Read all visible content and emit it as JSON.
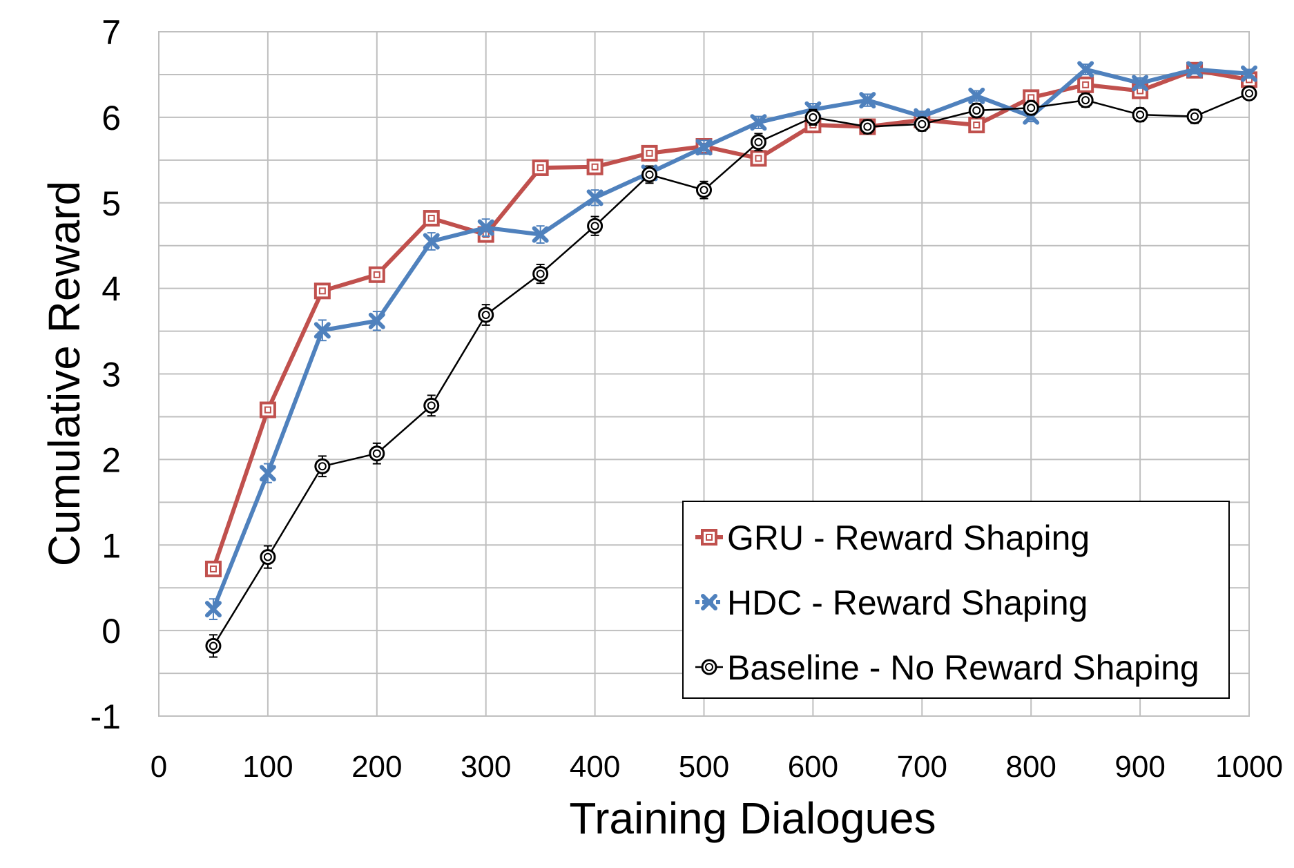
{
  "chart_data": {
    "type": "line",
    "xlabel": "Training Dialogues",
    "ylabel": "Cumulative Reward",
    "xlim": [
      0,
      1000
    ],
    "ylim": [
      -1,
      7
    ],
    "x_ticks": [
      "0",
      "100",
      "200",
      "300",
      "400",
      "500",
      "600",
      "700",
      "800",
      "900",
      "1000"
    ],
    "y_ticks": [
      "-1",
      "0",
      "1",
      "2",
      "3",
      "4",
      "5",
      "6",
      "7"
    ],
    "grid": true,
    "legend_position": "bottom-right",
    "x": [
      50,
      100,
      150,
      200,
      250,
      300,
      350,
      400,
      450,
      500,
      550,
      600,
      650,
      700,
      750,
      800,
      850,
      900,
      950,
      1000
    ],
    "series": [
      {
        "name": "GRU - Reward Shaping",
        "color": "#C0504D",
        "marker": "square",
        "values": [
          0.72,
          2.58,
          3.97,
          4.16,
          4.82,
          4.63,
          5.41,
          5.42,
          5.58,
          5.66,
          5.52,
          5.91,
          5.89,
          5.97,
          5.91,
          6.23,
          6.38,
          6.31,
          6.55,
          6.44
        ],
        "errors": [
          0.07,
          0.07,
          0.07,
          0.07,
          0.07,
          0.07,
          0.06,
          0.06,
          0.06,
          0.06,
          0.06,
          0.05,
          0.05,
          0.05,
          0.05,
          0.05,
          0.05,
          0.05,
          0.05,
          0.05
        ]
      },
      {
        "name": "HDC - Reward Shaping",
        "color": "#4F81BD",
        "marker": "x",
        "values": [
          0.25,
          1.84,
          3.51,
          3.62,
          4.55,
          4.71,
          4.63,
          5.06,
          5.35,
          5.65,
          5.94,
          6.09,
          6.2,
          6.01,
          6.25,
          6.01,
          6.56,
          6.4,
          6.56,
          6.51
        ],
        "errors": [
          0.12,
          0.11,
          0.12,
          0.11,
          0.1,
          0.1,
          0.1,
          0.09,
          0.08,
          0.08,
          0.07,
          0.07,
          0.07,
          0.06,
          0.06,
          0.06,
          0.06,
          0.06,
          0.05,
          0.05
        ]
      },
      {
        "name": "Baseline - No Reward Shaping",
        "color": "#000000",
        "marker": "circle",
        "values": [
          -0.18,
          0.86,
          1.92,
          2.07,
          2.63,
          3.69,
          4.17,
          4.73,
          5.33,
          5.15,
          5.71,
          6.0,
          5.89,
          5.92,
          6.08,
          6.11,
          6.2,
          6.03,
          6.01,
          6.28
        ],
        "errors": [
          0.13,
          0.13,
          0.12,
          0.12,
          0.12,
          0.12,
          0.11,
          0.11,
          0.1,
          0.1,
          0.1,
          0.09,
          0.08,
          0.08,
          0.08,
          0.08,
          0.08,
          0.08,
          0.08,
          0.07
        ]
      }
    ]
  }
}
